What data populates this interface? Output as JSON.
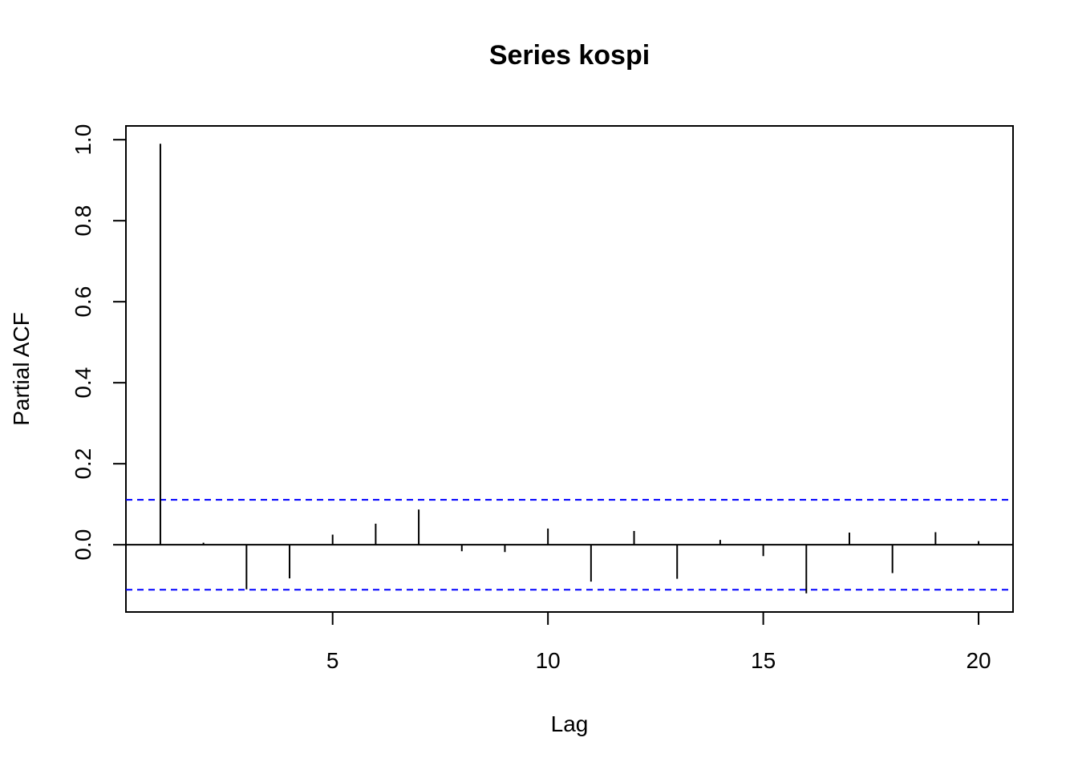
{
  "chart_data": {
    "type": "bar",
    "title": "Series  kospi",
    "xlabel": "Lag",
    "ylabel": "Partial ACF",
    "xlim": [
      0.2,
      20.8
    ],
    "ylim": [
      -0.166,
      1.034
    ],
    "x_ticks": [
      5,
      10,
      15,
      20
    ],
    "x_tick_labels": [
      "5",
      "10",
      "15",
      "20"
    ],
    "y_ticks": [
      0.0,
      0.2,
      0.4,
      0.6,
      0.8,
      1.0
    ],
    "y_tick_labels": [
      "0.0",
      "0.2",
      "0.4",
      "0.6",
      "0.8",
      "1.0"
    ],
    "confidence_bound": 0.111,
    "confidence_color": "#0000ff",
    "bar_color": "#000000",
    "grid": false,
    "lags": [
      1,
      2,
      3,
      4,
      5,
      6,
      7,
      8,
      9,
      10,
      11,
      12,
      13,
      14,
      15,
      16,
      17,
      18,
      19,
      20
    ],
    "values": [
      0.99,
      0.005,
      -0.11,
      -0.083,
      0.025,
      0.052,
      0.087,
      -0.016,
      -0.018,
      0.04,
      -0.091,
      0.034,
      -0.084,
      0.012,
      -0.028,
      -0.12,
      0.03,
      -0.07,
      0.031,
      0.009
    ]
  }
}
